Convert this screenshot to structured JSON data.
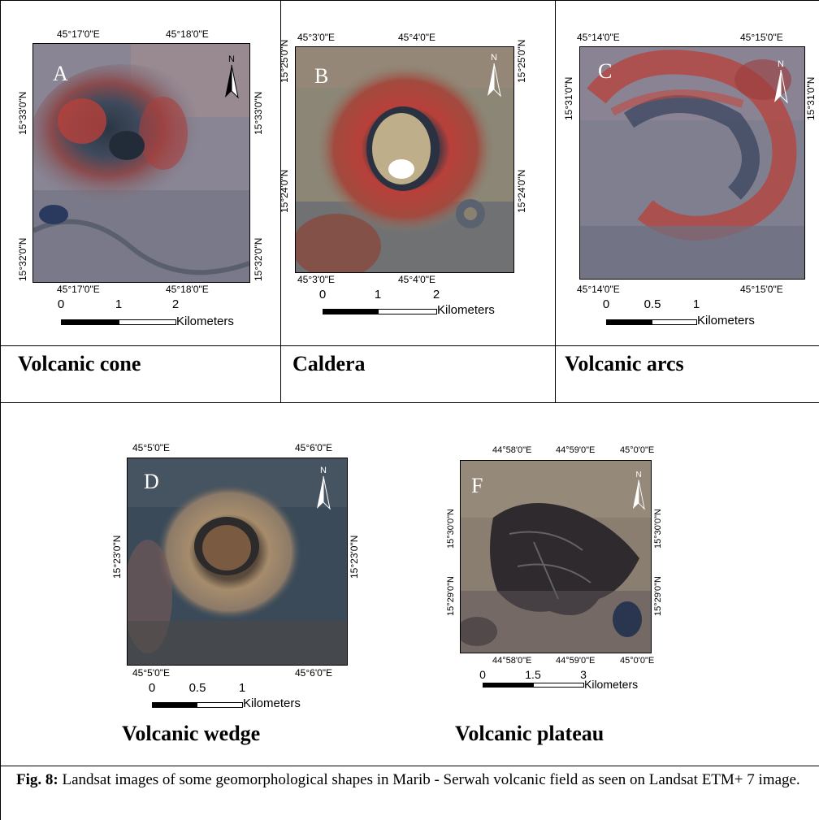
{
  "panels": [
    {
      "id": "A",
      "label": "A",
      "title": "Volcanic cone",
      "top_coords": [
        "45°17'0\"E",
        "45°18'0\"E"
      ],
      "bottom_coords": [
        "45°17'0\"E",
        "45°18'0\"E"
      ],
      "left_coords": [
        "15°33'0\"N",
        "15°32'0\"N"
      ],
      "right_coords": [
        "15°33'0\"N",
        "15°32'0\"N"
      ],
      "scale_ticks": [
        "0",
        "1",
        "2"
      ],
      "scale_unit": "Kilometers",
      "north": "N"
    },
    {
      "id": "B",
      "label": "B",
      "title": "Caldera",
      "top_coords": [
        "45°3'0\"E",
        "45°4'0\"E"
      ],
      "bottom_coords": [
        "45°3'0\"E",
        "45°4'0\"E"
      ],
      "left_coords": [
        "15°25'0\"N",
        "15°24'0\"N"
      ],
      "right_coords": [
        "15°25'0\"N",
        "15°24'0\"N"
      ],
      "scale_ticks": [
        "0",
        "1",
        "2"
      ],
      "scale_unit": "Kilometers",
      "north": "N"
    },
    {
      "id": "C",
      "label": "C",
      "title": "Volcanic arcs",
      "top_coords": [
        "45°14'0\"E",
        "45°15'0\"E"
      ],
      "bottom_coords": [
        "45°14'0\"E",
        "45°15'0\"E"
      ],
      "left_coords": [
        "15°31'0\"N"
      ],
      "right_coords": [
        "15°31'0\"N"
      ],
      "scale_ticks": [
        "0",
        "0.5",
        "1"
      ],
      "scale_unit": "Kilometers",
      "north": "N"
    },
    {
      "id": "D",
      "label": "D",
      "title": "Volcanic wedge",
      "top_coords": [
        "45°5'0\"E",
        "45°6'0\"E"
      ],
      "bottom_coords": [
        "45°5'0\"E",
        "45°6'0\"E"
      ],
      "left_coords": [
        "15°23'0\"N"
      ],
      "right_coords": [
        "15°23'0\"N"
      ],
      "scale_ticks": [
        "0",
        "0.5",
        "1"
      ],
      "scale_unit": "Kilometers",
      "north": "N"
    },
    {
      "id": "F",
      "label": "F",
      "title": "Volcanic plateau",
      "top_coords": [
        "44°58'0\"E",
        "44°59'0\"E",
        "45°0'0\"E"
      ],
      "bottom_coords": [
        "44°58'0\"E",
        "44°59'0\"E",
        "45°0'0\"E"
      ],
      "left_coords": [
        "15°30'0\"N",
        "15°29'0\"N"
      ],
      "right_coords": [
        "15°30'0\"N",
        "15°29'0\"N"
      ],
      "scale_ticks": [
        "0",
        "1.5",
        "3"
      ],
      "scale_unit": "Kilometers",
      "north": "N"
    }
  ],
  "caption": {
    "prefix": "Fig. 8:",
    "text": " Landsat images of some geomorphological shapes in Marib - Serwah volcanic field as seen on Landsat ETM+ 7 image."
  },
  "colors": {
    "volcanic_red": "#b8403a",
    "basalt_dark": "#2f3a48",
    "terrain_grey": "#7c7d8c",
    "terrain_pink": "#a08c92",
    "deposit_white": "#ffffff"
  }
}
